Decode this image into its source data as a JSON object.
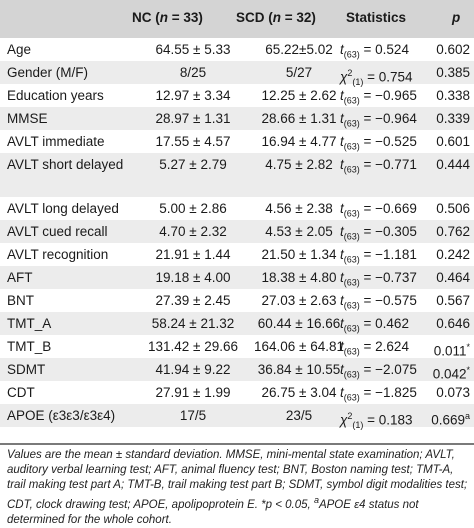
{
  "header": {
    "nc_label": "NC (",
    "nc_n": "n",
    "nc_count": " = 33)",
    "scd_label": "SCD (",
    "scd_n": "n",
    "scd_count": " = 32)",
    "stats_label": "Statistics",
    "p_label": "p"
  },
  "rows": [
    {
      "name": "Age",
      "nc": "64.55 ± 5.33",
      "scd": "65.22±5.02",
      "stat_sym": "t",
      "stat_sub": "(63)",
      "stat_val": " = 0.524",
      "p": "0.602"
    },
    {
      "name": "Gender (M/F)",
      "nc": "8/25",
      "scd": "5/27",
      "stat_sym": "χ",
      "stat_sup": "2",
      "stat_sub": "(1)",
      "stat_val": " = 0.754",
      "p": "0.385"
    },
    {
      "name": "Education years",
      "nc": "12.97 ± 3.34",
      "scd": "12.25 ± 2.62",
      "stat_sym": "t",
      "stat_sub": "(63)",
      "stat_val": " = −0.965",
      "p": "0.338"
    },
    {
      "name": "MMSE",
      "nc": "28.97 ± 1.31",
      "scd": "28.66 ± 1.31",
      "stat_sym": "t",
      "stat_sub": "(63)",
      "stat_val": " = −0.964",
      "p": "0.339"
    },
    {
      "name": "AVLT immediate",
      "nc": "17.55 ± 4.57",
      "scd": "16.94 ± 4.77",
      "stat_sym": "t",
      "stat_sub": "(63)",
      "stat_val": " = −0.525",
      "p": "0.601"
    },
    {
      "name": "AVLT short delayed",
      "nc": "5.27 ± 2.79",
      "scd": "4.75 ± 2.82",
      "stat_sym": "t",
      "stat_sub": "(63)",
      "stat_val": " = −0.771",
      "p": "0.444"
    },
    {
      "name": "AVLT long delayed",
      "nc": "5.00 ± 2.86",
      "scd": "4.56 ± 2.38",
      "stat_sym": "t",
      "stat_sub": "(63)",
      "stat_val": " = −0.669",
      "p": "0.506"
    },
    {
      "name": "AVLT cued recall",
      "nc": "4.70 ± 2.32",
      "scd": "4.53 ± 2.05",
      "stat_sym": "t",
      "stat_sub": "(63)",
      "stat_val": " = −0.305",
      "p": "0.762"
    },
    {
      "name": "AVLT recognition",
      "nc": "21.91 ± 1.44",
      "scd": "21.50 ± 1.34",
      "stat_sym": "t",
      "stat_sub": "(63)",
      "stat_val": " = −1.181",
      "p": "0.242"
    },
    {
      "name": "AFT",
      "nc": "19.18 ± 4.00",
      "scd": "18.38 ± 4.80",
      "stat_sym": "t",
      "stat_sub": "(63)",
      "stat_val": " = −0.737",
      "p": "0.464"
    },
    {
      "name": "BNT",
      "nc": "27.39 ± 2.45",
      "scd": "27.03 ± 2.63",
      "stat_sym": "t",
      "stat_sub": "(63)",
      "stat_val": " = −0.575",
      "p": "0.567"
    },
    {
      "name": "TMT_A",
      "nc": "58.24 ± 21.32",
      "scd": "60.44 ± 16.66",
      "stat_sym": "t",
      "stat_sub": "(63)",
      "stat_val": " = 0.462",
      "p": "0.646"
    },
    {
      "name": "TMT_B",
      "nc": "131.42 ± 29.66",
      "scd": "164.06 ± 64.81",
      "stat_sym": "t",
      "stat_sub": "(63)",
      "stat_val": " = 2.624",
      "p": "0.011",
      "p_sup": "*"
    },
    {
      "name": "SDMT",
      "nc": "41.94 ± 9.22",
      "scd": "36.84 ± 10.55",
      "stat_sym": "t",
      "stat_sub": "(63)",
      "stat_val": " = −2.075",
      "p": "0.042",
      "p_sup": "*"
    },
    {
      "name": "CDT",
      "nc": "27.91 ± 1.99",
      "scd": "26.75 ± 3.04",
      "stat_sym": "t",
      "stat_sub": "(63)",
      "stat_val": " = −1.825",
      "p": "0.073"
    },
    {
      "name": "APOE (ε3ε3/ε3ε4)",
      "nc": "17/5",
      "scd": "23/5",
      "stat_sym": "χ",
      "stat_sup": "2",
      "stat_sub": "(1)",
      "stat_val": " = 0.183",
      "p": "0.669",
      "p_sup": "a"
    }
  ],
  "footnote": {
    "part1": "Values are the mean ± standard deviation. MMSE, mini-mental state examination; AVLT, auditory verbal learning test; AFT, animal fluency test; BNT, Boston naming test; TMT-A, trail making test part A; TMT-B, trail making test part B; SDMT, symbol digit modalities test; CDT, clock drawing test; APOE, apolipoprotein E. *p < 0.05, ",
    "sup": "a",
    "part2": "APOE ε4 status not determined for the whole cohort."
  }
}
